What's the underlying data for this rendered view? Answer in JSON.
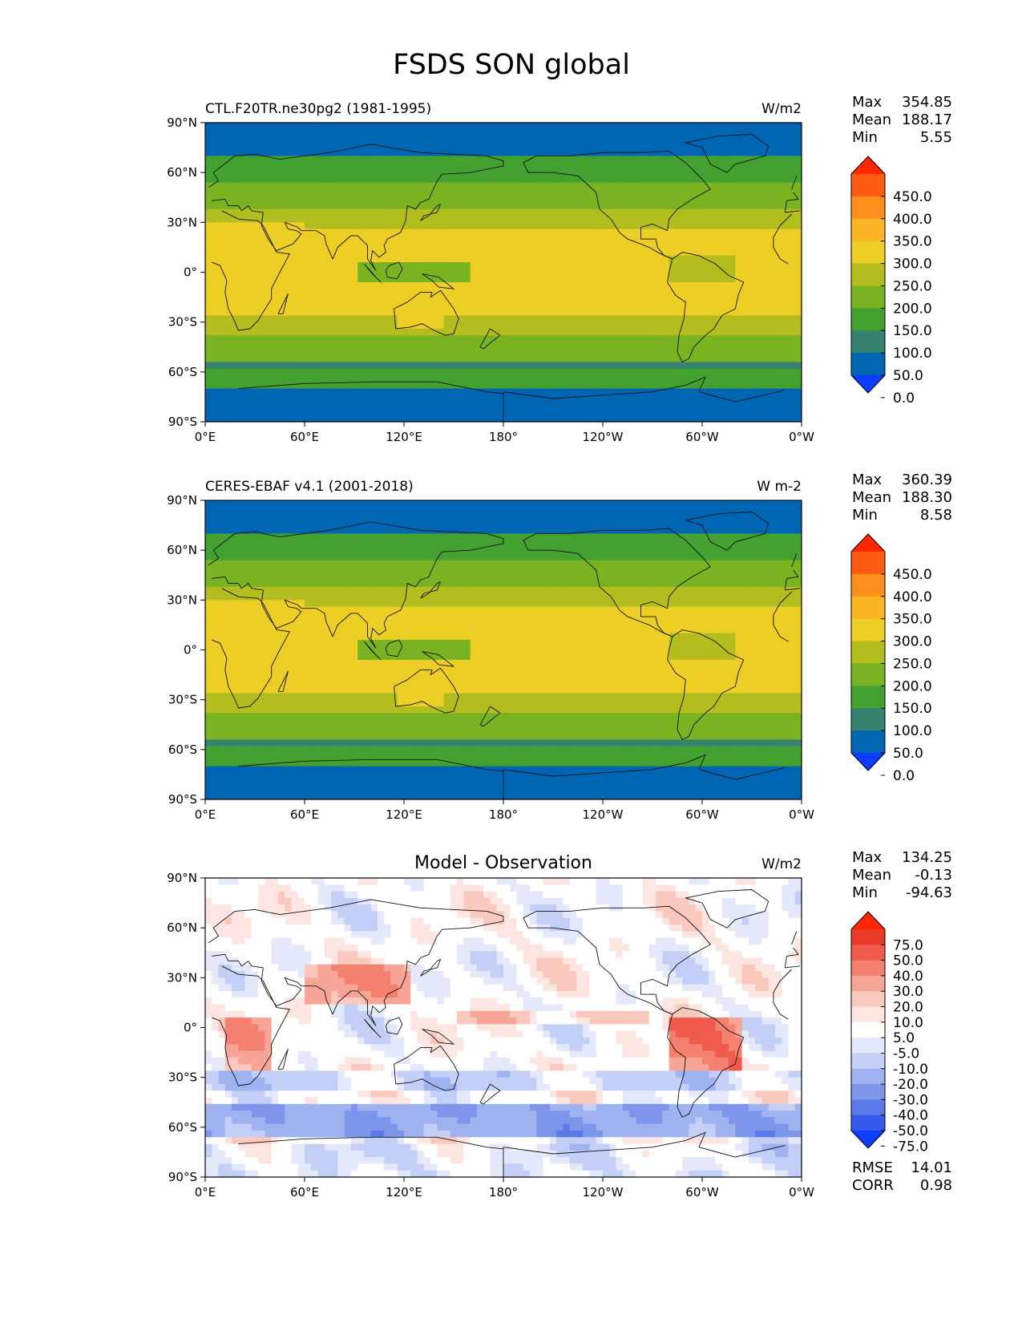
{
  "title": "FSDS SON global",
  "chart_data": [
    {
      "type": "heatmap",
      "title": "CTL.F20TR.ne30pg2 (1981-1995)",
      "units": "W/m2",
      "stats": [
        {
          "label": "Max",
          "value": "354.85"
        },
        {
          "label": "Mean",
          "value": "188.17"
        },
        {
          "label": "Min",
          "value": "5.55"
        }
      ],
      "colorbar_levels": [
        "450.0",
        "400.0",
        "350.0",
        "300.0",
        "250.0",
        "200.0",
        "150.0",
        "100.0",
        "50.0",
        "0.0"
      ],
      "colorbar_colors": [
        "#ff2600",
        "#ff5a12",
        "#ff8f1c",
        "#fbb525",
        "#ecce25",
        "#b3bd1e",
        "#7ab321",
        "#43a130",
        "#36826f",
        "#0066b4",
        "#0b3cff"
      ],
      "yticks": [
        "90°N",
        "60°N",
        "30°N",
        "0°",
        "30°S",
        "60°S",
        "90°S"
      ],
      "xticks": [
        "0°E",
        "60°E",
        "120°E",
        "180°",
        "120°W",
        "60°W",
        "0°W"
      ]
    },
    {
      "type": "heatmap",
      "title": "CERES-EBAF v4.1 (2001-2018)",
      "units": "W m-2",
      "stats": [
        {
          "label": "Max",
          "value": "360.39"
        },
        {
          "label": "Mean",
          "value": "188.30"
        },
        {
          "label": "Min",
          "value": "8.58"
        }
      ],
      "colorbar_levels": [
        "450.0",
        "400.0",
        "350.0",
        "300.0",
        "250.0",
        "200.0",
        "150.0",
        "100.0",
        "50.0",
        "0.0"
      ],
      "colorbar_colors": [
        "#ff2600",
        "#ff5a12",
        "#ff8f1c",
        "#fbb525",
        "#ecce25",
        "#b3bd1e",
        "#7ab321",
        "#43a130",
        "#36826f",
        "#0066b4",
        "#0b3cff"
      ],
      "yticks": [
        "90°N",
        "60°N",
        "30°N",
        "0°",
        "30°S",
        "60°S",
        "90°S"
      ],
      "xticks": [
        "0°E",
        "60°E",
        "120°E",
        "180°",
        "120°W",
        "60°W",
        "0°W"
      ]
    },
    {
      "type": "heatmap",
      "title": "Model - Observation",
      "units": "W/m2",
      "stats": [
        {
          "label": "Max",
          "value": "134.25"
        },
        {
          "label": "Mean",
          "value": "-0.13"
        },
        {
          "label": "Min",
          "value": "-94.63"
        }
      ],
      "colorbar_levels": [
        "75.0",
        "50.0",
        "40.0",
        "30.0",
        "20.0",
        "10.0",
        "5.0",
        "-5.0",
        "-10.0",
        "-20.0",
        "-30.0",
        "-40.0",
        "-50.0",
        "-75.0"
      ],
      "colorbar_colors": [
        "#ff2600",
        "#ec3a2a",
        "#f05b4c",
        "#f4806f",
        "#f7a596",
        "#fac8bd",
        "#fde6e1",
        "#ffffff",
        "#e3e8fb",
        "#c3cff6",
        "#a0b3f1",
        "#7d96ec",
        "#5c79ea",
        "#3759ee",
        "#0b3cff"
      ],
      "yticks": [
        "90°N",
        "60°N",
        "30°N",
        "0°",
        "30°S",
        "60°S",
        "90°S"
      ],
      "xticks": [
        "0°E",
        "60°E",
        "120°E",
        "180°",
        "120°W",
        "60°W",
        "0°W"
      ],
      "footer_stats": [
        {
          "label": "RMSE",
          "value": "14.01"
        },
        {
          "label": "CORR",
          "value": "0.98"
        }
      ]
    }
  ]
}
